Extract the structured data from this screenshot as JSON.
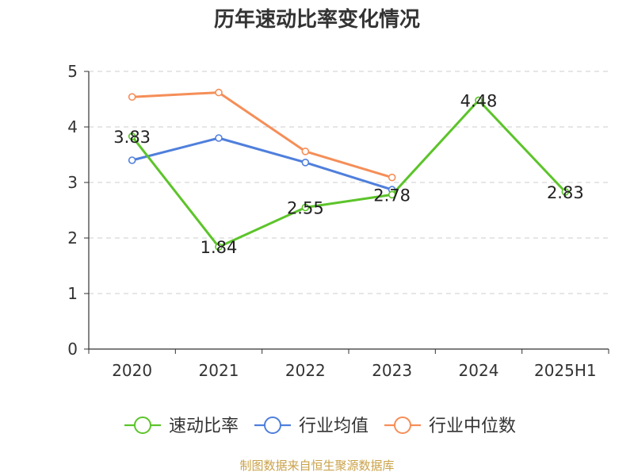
{
  "chart_data": {
    "type": "line",
    "title": "历年速动比率变化情况",
    "categories": [
      "2020",
      "2021",
      "2022",
      "2023",
      "2024",
      "2025H1"
    ],
    "ylim": [
      0,
      5
    ],
    "yticks": [
      "0",
      "1",
      "2",
      "3",
      "4",
      "5"
    ],
    "grid": true,
    "legend_position": "bottom",
    "series": [
      {
        "name": "速动比率",
        "color": "#5cc42a",
        "values": [
          3.83,
          1.84,
          2.55,
          2.78,
          4.48,
          2.83
        ],
        "labels": [
          "3.83",
          "1.84",
          "2.55",
          "2.78",
          "4.48",
          "2.83"
        ]
      },
      {
        "name": "行业均值",
        "color": "#4f7fdc",
        "values": [
          3.4,
          3.8,
          3.36,
          2.87,
          null,
          null
        ]
      },
      {
        "name": "行业中位数",
        "color": "#f58e58",
        "values": [
          4.54,
          4.62,
          3.56,
          3.09,
          null,
          null
        ]
      }
    ]
  },
  "source": "制图数据来自恒生聚源数据库"
}
